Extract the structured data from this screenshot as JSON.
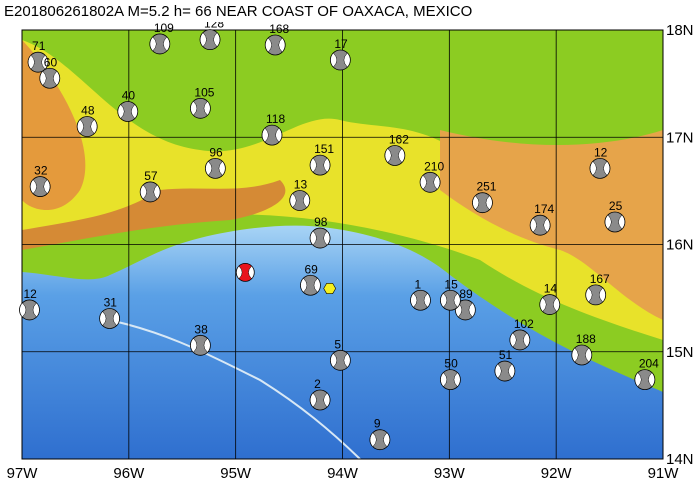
{
  "title": "E201806261802A M=5.2 h= 66 NEAR COAST OF OAXACA, MEXICO",
  "map": {
    "lon_range": [
      -97,
      -91
    ],
    "lat_range": [
      14,
      18
    ],
    "lon_ticks": [
      {
        "value": -97,
        "label": "97W"
      },
      {
        "value": -96,
        "label": "96W"
      },
      {
        "value": -95,
        "label": "95W"
      },
      {
        "value": -94,
        "label": "94W"
      },
      {
        "value": -93,
        "label": "93W"
      },
      {
        "value": -92,
        "label": "92W"
      },
      {
        "value": -91,
        "label": "91W"
      }
    ],
    "lat_ticks": [
      {
        "value": 18,
        "label": "18N"
      },
      {
        "value": 17,
        "label": "17N"
      },
      {
        "value": 16,
        "label": "16N"
      },
      {
        "value": 15,
        "label": "15N"
      },
      {
        "value": 14,
        "label": "14N"
      }
    ],
    "mainshock": {
      "lon": -94.91,
      "lat": 15.74
    },
    "epicenter": {
      "lon": -94.12,
      "lat": 15.59
    },
    "events": [
      {
        "depth": 71,
        "lon": -96.85,
        "lat": 17.7
      },
      {
        "depth": 60,
        "lon": -96.74,
        "lat": 17.55
      },
      {
        "depth": 48,
        "lon": -96.39,
        "lat": 17.1
      },
      {
        "depth": 40,
        "lon": -96.01,
        "lat": 17.24
      },
      {
        "depth": 32,
        "lon": -96.83,
        "lat": 16.54
      },
      {
        "depth": 118,
        "lon": -94.66,
        "lat": 17.02
      },
      {
        "depth": 162,
        "lon": -93.51,
        "lat": 16.83
      },
      {
        "depth": 12,
        "lon": -91.59,
        "lat": 16.71
      },
      {
        "depth": 251,
        "lon": -92.69,
        "lat": 16.39
      },
      {
        "depth": 174,
        "lon": -92.15,
        "lat": 16.18
      },
      {
        "depth": 25,
        "lon": -91.45,
        "lat": 16.21
      },
      {
        "depth": 168,
        "lon": -94.63,
        "lat": 17.86
      },
      {
        "depth": 105,
        "lon": -95.33,
        "lat": 17.27
      },
      {
        "depth": 96,
        "lon": -95.19,
        "lat": 16.71
      },
      {
        "depth": 57,
        "lon": -95.8,
        "lat": 16.49
      },
      {
        "depth": 98,
        "lon": -94.21,
        "lat": 16.06
      },
      {
        "depth": 69,
        "lon": -94.3,
        "lat": 15.62
      },
      {
        "depth": 12,
        "lon": -96.93,
        "lat": 15.39
      },
      {
        "depth": 31,
        "lon": -96.18,
        "lat": 15.31
      },
      {
        "depth": 38,
        "lon": -95.33,
        "lat": 15.06
      },
      {
        "depth": 89,
        "lon": -92.85,
        "lat": 15.39
      },
      {
        "depth": 102,
        "lon": -92.34,
        "lat": 15.11
      },
      {
        "depth": 188,
        "lon": -91.76,
        "lat": 14.97
      },
      {
        "depth": 204,
        "lon": -91.17,
        "lat": 14.74
      },
      {
        "depth": 167,
        "lon": -91.63,
        "lat": 15.53
      },
      {
        "depth": 210,
        "lon": -93.18,
        "lat": 16.58
      },
      {
        "depth": 15,
        "lon": -92.99,
        "lat": 15.48
      },
      {
        "depth": 5,
        "lon": -94.02,
        "lat": 14.92
      },
      {
        "depth": 2,
        "lon": -94.21,
        "lat": 14.55
      },
      {
        "depth": 51,
        "lon": -92.48,
        "lat": 14.82
      },
      {
        "depth": 50,
        "lon": -92.99,
        "lat": 14.74
      },
      {
        "depth": 13,
        "lon": -94.4,
        "lat": 16.41
      },
      {
        "depth": 128,
        "lon": -95.24,
        "lat": 17.91
      },
      {
        "depth": 109,
        "lon": -95.71,
        "lat": 17.87
      },
      {
        "depth": 17,
        "lon": -94.02,
        "lat": 17.72
      },
      {
        "depth": 151,
        "lon": -94.21,
        "lat": 16.74
      },
      {
        "depth": 1,
        "lon": -93.27,
        "lat": 15.48
      },
      {
        "depth": 14,
        "lon": -92.06,
        "lat": 15.44
      },
      {
        "depth": 9,
        "lon": -93.65,
        "lat": 14.18
      }
    ]
  }
}
